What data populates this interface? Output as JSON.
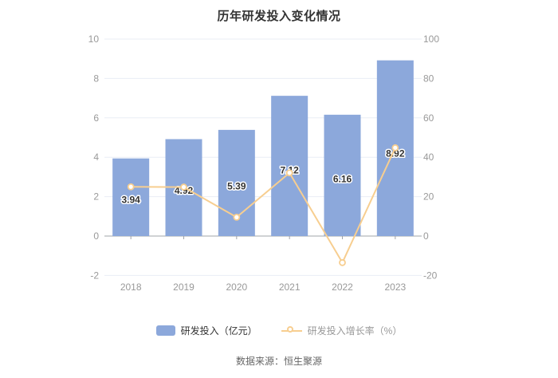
{
  "chart_data": {
    "type": "bar",
    "title": "历年研发投入变化情况",
    "categories": [
      "2018",
      "2019",
      "2020",
      "2021",
      "2022",
      "2023"
    ],
    "series": [
      {
        "name": "研发投入（亿元）",
        "type": "bar",
        "axis": "left",
        "values": [
          3.94,
          4.92,
          5.39,
          7.12,
          6.16,
          8.92
        ],
        "labels": [
          "3.94",
          "4.92",
          "5.39",
          "7.12",
          "6.16",
          "8.92"
        ],
        "color": "#8CA8DB"
      },
      {
        "name": "研发投入增长率（%）",
        "type": "line",
        "axis": "right",
        "values": [
          25.0,
          24.87,
          9.55,
          32.1,
          -13.48,
          44.81
        ],
        "color": "#F7CE90"
      }
    ],
    "left_axis": {
      "ticks": [
        10,
        8,
        6,
        4,
        2,
        0,
        -2
      ],
      "min": -2,
      "max": 10
    },
    "right_axis": {
      "ticks": [
        100,
        80,
        60,
        40,
        20,
        0,
        -20
      ],
      "min": -20,
      "max": 100
    },
    "grid": true,
    "legend_position": "bottom"
  },
  "legend": {
    "items": [
      {
        "label": "研发投入（亿元）",
        "marker": "bar-swatch",
        "color": "#8CA8DB"
      },
      {
        "label": "研发投入增长率（%）",
        "marker": "line-circle",
        "color": "#F7CE90"
      }
    ]
  },
  "source": {
    "text": "数据来源：恒生聚源"
  },
  "colors": {
    "bar": "#8CA8DB",
    "line": "#F7CE90",
    "grid": "#E9EDF5",
    "axis_line": "#A0A4AA",
    "axis_label": "#999999",
    "title": "#333333",
    "bar_label": "#333333",
    "source_text": "#666666"
  }
}
